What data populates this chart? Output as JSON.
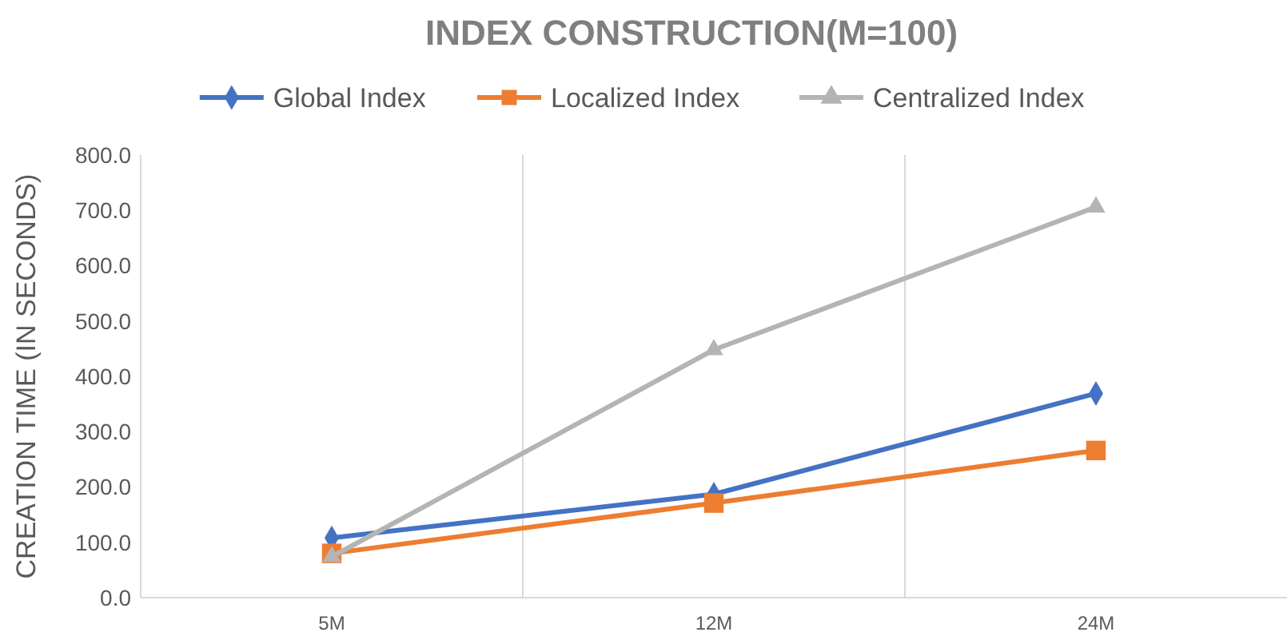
{
  "chart_data": {
    "type": "line",
    "title": "INDEX CONSTRUCTION(M=100)",
    "ylabel": "CREATION TIME (IN SECONDS)",
    "categories": [
      "5M",
      "12M",
      "24M"
    ],
    "series": [
      {
        "name": "Global Index",
        "color": "#4472c4",
        "marker": "diamond",
        "values": [
          108,
          187,
          369
        ]
      },
      {
        "name": "Localized Index",
        "color": "#ed7d31",
        "marker": "square",
        "values": [
          80,
          171,
          266
        ]
      },
      {
        "name": "Centralized Index",
        "color": "#b4b4b4",
        "marker": "triangle",
        "values": [
          74,
          448,
          706
        ]
      }
    ],
    "ylim": [
      0,
      800
    ],
    "yticks": [
      {
        "value": 0,
        "label": "0.0"
      },
      {
        "value": 100,
        "label": "100.0"
      },
      {
        "value": 200,
        "label": "200.0"
      },
      {
        "value": 300,
        "label": "300.0"
      },
      {
        "value": 400,
        "label": "400.0"
      },
      {
        "value": 500,
        "label": "500.0"
      },
      {
        "value": 600,
        "label": "600.0"
      },
      {
        "value": 700,
        "label": "700.0"
      },
      {
        "value": 800,
        "label": "800.0"
      }
    ],
    "grid": "x",
    "legend": "top",
    "line_style": "solid"
  }
}
